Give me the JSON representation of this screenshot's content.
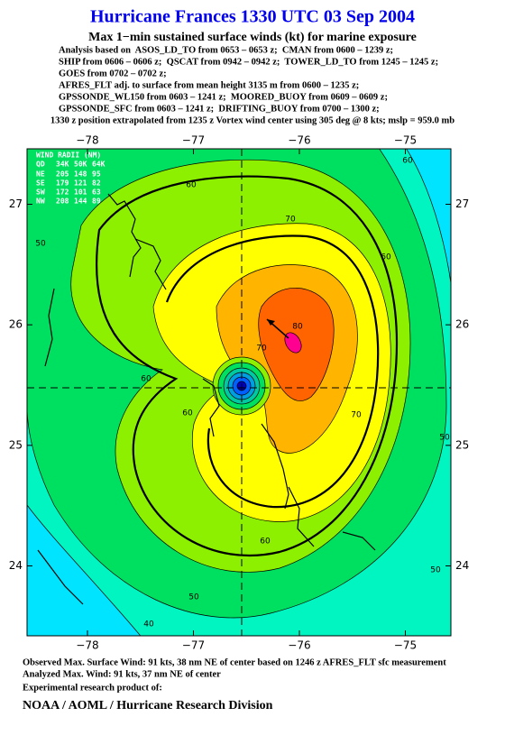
{
  "map": {
    "title": "Hurricane Frances 1330 UTC 03 Sep 2004",
    "subtitle": "Max 1−min sustained surface winds (kt) for marine exposure",
    "analysis_lines": [
      "Analysis based on  ASOS_LD_TO from 0653 – 0653 z;  CMAN from 0600 – 1239 z;",
      "SHIP from 0606 – 0606 z;  QSCAT from 0942 – 0942 z;  TOWER_LD_TO from 1245 – 1245 z;",
      "GOES from 0702 – 0702 z;",
      "AFRES_FLT adj. to surface from mean height 3135 m from 0600 – 1235 z;",
      "GPSSONDE_WL150 from 0603 – 1241 z;  MOORED_BUOY from 0609 – 0609 z;",
      "GPSSONDE_SFC from 0603 – 1241 z;  DRIFTING_BUOY from 0700 – 1300 z;"
    ],
    "position_note": "1330 z position extrapolated from 1235 z Vortex wind center using 305 deg @ 8 kts; mslp = 959.0 mb",
    "xlim": [
      -78.57,
      -74.57
    ],
    "ylim": [
      23.42,
      27.46
    ],
    "xticks": [
      {
        "value": -78,
        "label": "−78"
      },
      {
        "value": -77,
        "label": "−77"
      },
      {
        "value": -76,
        "label": "−76"
      },
      {
        "value": -75,
        "label": "−75"
      }
    ],
    "yticks": [
      24,
      25,
      26,
      27
    ],
    "wind_radii": {
      "title": "WIND RADII (NM)",
      "header": [
        "QD",
        "34K",
        "50K",
        "64K"
      ],
      "rows": [
        [
          "NE",
          205,
          148,
          95
        ],
        [
          "SE",
          179,
          121,
          82
        ],
        [
          "SW",
          172,
          101,
          63
        ],
        [
          "NW",
          208,
          144,
          89
        ]
      ]
    },
    "contour_labels": [
      60,
      60,
      70,
      60,
      60,
      80,
      70,
      70,
      50,
      60,
      50,
      50,
      40,
      50,
      60
    ],
    "footer": [
      "Observed Max. Surface Wind: 91 kts, 38 nm NE of center based on 1246 z AFRES_FLT sfc measurement",
      "Analyzed Max. Wind: 91 kts, 37 nm NE of center",
      "Experimental research product of:",
      "NOAA / AOML / Hurricane Research Division"
    ]
  }
}
